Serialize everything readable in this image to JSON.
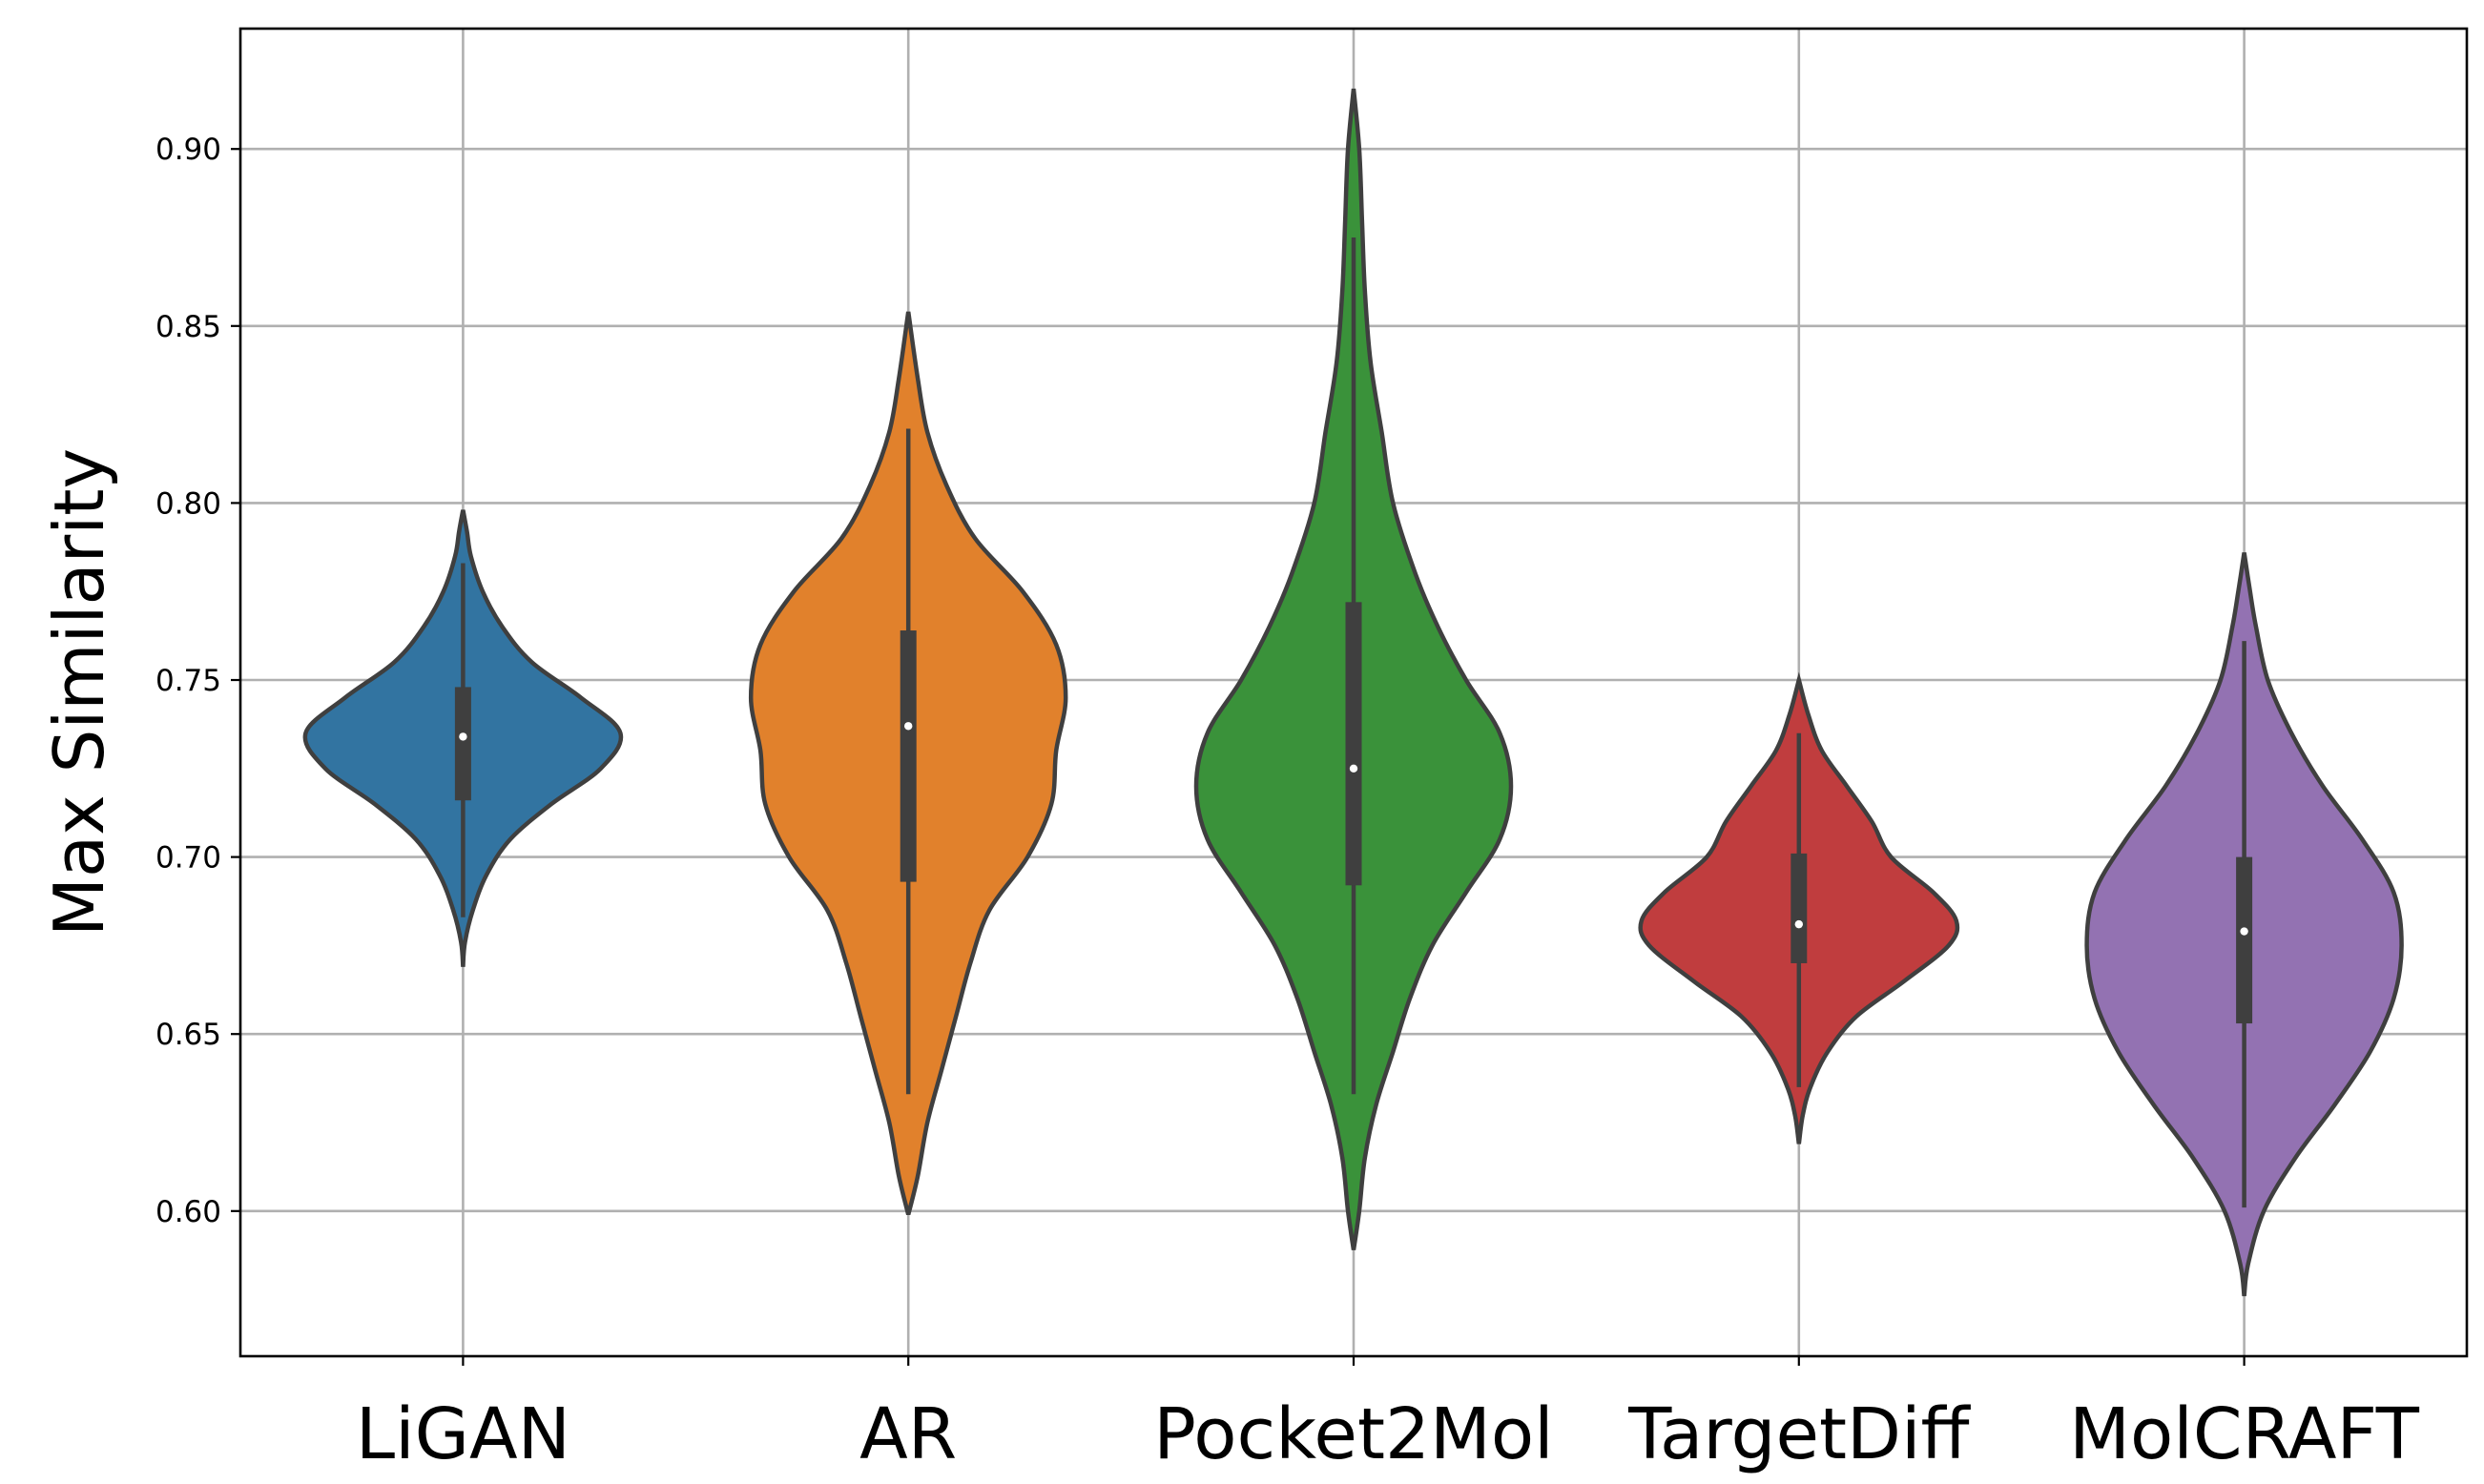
{
  "chart_data": {
    "type": "violin",
    "title": "",
    "xlabel": "",
    "ylabel": "Max Similarity",
    "ylim": [
      0.559,
      0.934
    ],
    "yticks": [
      "0.60",
      "0.65",
      "0.70",
      "0.75",
      "0.80",
      "0.85",
      "0.90"
    ],
    "grid": true,
    "legend": "none",
    "series": [
      {
        "category": "LiGAN",
        "color": "#3274a1",
        "median": 0.734,
        "q1": 0.716,
        "q3": 0.748,
        "whisker_low": 0.683,
        "whisker_high": 0.783,
        "min": 0.669,
        "max": 0.798,
        "density": [
          [
            0.669,
            0.0
          ],
          [
            0.676,
            0.01
          ],
          [
            0.685,
            0.05
          ],
          [
            0.695,
            0.12
          ],
          [
            0.705,
            0.24
          ],
          [
            0.715,
            0.45
          ],
          [
            0.725,
            0.7
          ],
          [
            0.735,
            0.8
          ],
          [
            0.745,
            0.6
          ],
          [
            0.755,
            0.35
          ],
          [
            0.765,
            0.2
          ],
          [
            0.775,
            0.1
          ],
          [
            0.785,
            0.04
          ],
          [
            0.792,
            0.02
          ],
          [
            0.798,
            0.0
          ]
        ]
      },
      {
        "category": "AR",
        "color": "#e1812c",
        "median": 0.737,
        "q1": 0.693,
        "q3": 0.764,
        "whisker_low": 0.633,
        "whisker_high": 0.821,
        "min": 0.599,
        "max": 0.854,
        "density": [
          [
            0.599,
            0.0
          ],
          [
            0.61,
            0.02
          ],
          [
            0.625,
            0.04
          ],
          [
            0.64,
            0.07
          ],
          [
            0.655,
            0.1
          ],
          [
            0.67,
            0.13
          ],
          [
            0.685,
            0.17
          ],
          [
            0.7,
            0.25
          ],
          [
            0.715,
            0.3
          ],
          [
            0.73,
            0.31
          ],
          [
            0.745,
            0.33
          ],
          [
            0.76,
            0.31
          ],
          [
            0.775,
            0.24
          ],
          [
            0.79,
            0.14
          ],
          [
            0.805,
            0.08
          ],
          [
            0.82,
            0.04
          ],
          [
            0.835,
            0.02
          ],
          [
            0.854,
            0.0
          ]
        ]
      },
      {
        "category": "Pocket2Mol",
        "color": "#3a923a",
        "median": 0.725,
        "q1": 0.692,
        "q3": 0.772,
        "whisker_low": 0.633,
        "whisker_high": 0.875,
        "min": 0.589,
        "max": 0.917,
        "density": [
          [
            0.589,
            0.0
          ],
          [
            0.6,
            0.01
          ],
          [
            0.615,
            0.02
          ],
          [
            0.63,
            0.04
          ],
          [
            0.645,
            0.07
          ],
          [
            0.66,
            0.1
          ],
          [
            0.675,
            0.14
          ],
          [
            0.69,
            0.2
          ],
          [
            0.705,
            0.26
          ],
          [
            0.72,
            0.28
          ],
          [
            0.735,
            0.26
          ],
          [
            0.75,
            0.2
          ],
          [
            0.765,
            0.15
          ],
          [
            0.78,
            0.11
          ],
          [
            0.8,
            0.07
          ],
          [
            0.82,
            0.05
          ],
          [
            0.84,
            0.03
          ],
          [
            0.86,
            0.02
          ],
          [
            0.88,
            0.015
          ],
          [
            0.9,
            0.01
          ],
          [
            0.917,
            0.0
          ]
        ]
      },
      {
        "category": "TargetDiff",
        "color": "#c03d3e",
        "median": 0.681,
        "q1": 0.67,
        "q3": 0.701,
        "whisker_low": 0.635,
        "whisker_high": 0.735,
        "min": 0.619,
        "max": 0.75,
        "density": [
          [
            0.619,
            0.0
          ],
          [
            0.627,
            0.02
          ],
          [
            0.635,
            0.06
          ],
          [
            0.645,
            0.15
          ],
          [
            0.655,
            0.3
          ],
          [
            0.665,
            0.55
          ],
          [
            0.675,
            0.78
          ],
          [
            0.682,
            0.82
          ],
          [
            0.69,
            0.7
          ],
          [
            0.7,
            0.48
          ],
          [
            0.71,
            0.38
          ],
          [
            0.72,
            0.25
          ],
          [
            0.73,
            0.12
          ],
          [
            0.74,
            0.05
          ],
          [
            0.75,
            0.0
          ]
        ]
      },
      {
        "category": "MolCRAFT",
        "color": "#9372b2",
        "median": 0.679,
        "q1": 0.653,
        "q3": 0.7,
        "whisker_low": 0.601,
        "whisker_high": 0.761,
        "min": 0.576,
        "max": 0.786,
        "density": [
          [
            0.576,
            0.0
          ],
          [
            0.585,
            0.01
          ],
          [
            0.6,
            0.05
          ],
          [
            0.615,
            0.13
          ],
          [
            0.63,
            0.23
          ],
          [
            0.645,
            0.32
          ],
          [
            0.66,
            0.38
          ],
          [
            0.675,
            0.4
          ],
          [
            0.69,
            0.38
          ],
          [
            0.705,
            0.3
          ],
          [
            0.72,
            0.2
          ],
          [
            0.735,
            0.12
          ],
          [
            0.75,
            0.06
          ],
          [
            0.765,
            0.03
          ],
          [
            0.775,
            0.015
          ],
          [
            0.786,
            0.0
          ]
        ]
      }
    ]
  }
}
